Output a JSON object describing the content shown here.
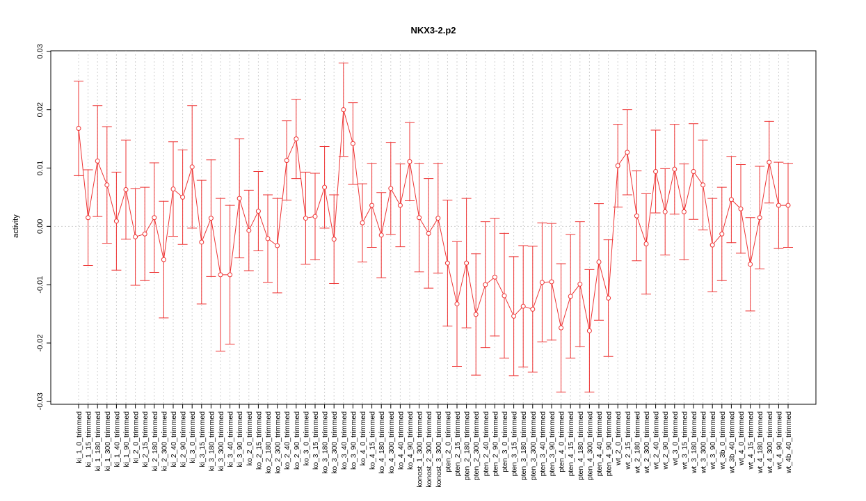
{
  "chart_data": {
    "type": "errorbar-line",
    "title": "NKX3-2.p2",
    "y_label": "activity",
    "categories": [
      "ki_1_0_trimmed",
      "ki_1_15_trimmed",
      "ki_1_180_trimmed",
      "ki_1_300_trimmed",
      "ki_1_40_trimmed",
      "ki_1_90_trimmed",
      "ki_2_0_trimmed",
      "ki_2_15_trimmed",
      "ki_2_180_trimmed",
      "ki_2_300_trimmed",
      "ki_2_40_trimmed",
      "ki_2_90_trimmed",
      "ki_3_0_trimmed",
      "ki_3_15_trimmed",
      "ki_3_180_trimmed",
      "ki_3_300_trimmed",
      "ki_3_40_trimmed",
      "ki_3_90_trimmed",
      "ko_2_0_trimmed",
      "ko_2_15_trimmed",
      "ko_2_180_trimmed",
      "ko_2_300_trimmed",
      "ko_2_40_trimmed",
      "ko_2_90_trimmed",
      "ko_3_0_trimmed",
      "ko_3_15_trimmed",
      "ko_3_180_trimmed",
      "ko_3_300_trimmed",
      "ko_3_40_trimmed",
      "ko_3_90_trimmed",
      "ko_4_0_trimmed",
      "ko_4_15_trimmed",
      "ko_4_180_trimmed",
      "ko_4_300_trimmed",
      "ko_4_40_trimmed",
      "ko_4_90_trimmed",
      "konost_1_300_trimmed",
      "konost_2_300_trimmed",
      "konost_3_300_trimmed",
      "pten_2_0_trimmed",
      "pten_2_15_trimmed",
      "pten_2_180_trimmed",
      "pten_2_300_trimmed",
      "pten_2_40_trimmed",
      "pten_2_90_trimmed",
      "pten_3_0_trimmed",
      "pten_3_15_trimmed",
      "pten_3_180_trimmed",
      "pten_3_300_trimmed",
      "pten_3_40_trimmed",
      "pten_3_90_trimmed",
      "pten_4_0_trimmed",
      "pten_4_15_trimmed",
      "pten_4_180_trimmed",
      "pten_4_300_trimmed",
      "pten_4_40_trimmed",
      "pten_4_90_trimmed",
      "wt_2_0_trimmed",
      "wt_2_15_trimmed",
      "wt_2_180_trimmed",
      "wt_2_300_trimmed",
      "wt_2_40_trimmed",
      "wt_2_90_trimmed",
      "wt_3_0_trimmed",
      "wt_3_15_trimmed",
      "wt_3_180_trimmed",
      "wt_3_300_trimmed",
      "wt_3_90_trimmed",
      "wt_3b_0_trimmed",
      "wt_3b_40_trimmed",
      "wt_4_0_trimmed",
      "wt_4_15_trimmed",
      "wt_4_180_trimmed",
      "wt_4_300_trimmed",
      "wt_4_90_trimmed",
      "wt_4b_40_trimmed"
    ],
    "values": [
      0.0168,
      0.0015,
      0.0112,
      0.0071,
      0.0009,
      0.0063,
      -0.0018,
      -0.0013,
      0.0015,
      -0.0057,
      0.0064,
      0.005,
      0.0102,
      -0.0027,
      0.0014,
      -0.0083,
      -0.0083,
      0.0048,
      -0.0007,
      0.0026,
      -0.0021,
      -0.0033,
      0.0113,
      0.015,
      0.0014,
      0.0017,
      0.0067,
      -0.0022,
      0.02,
      0.0142,
      0.0006,
      0.0036,
      -0.0015,
      0.0065,
      0.0036,
      0.0111,
      0.0015,
      -0.0012,
      0.0014,
      -0.0063,
      -0.0133,
      -0.0063,
      -0.0151,
      -0.01,
      -0.0087,
      -0.0119,
      -0.0154,
      -0.0137,
      -0.0142,
      -0.0096,
      -0.0095,
      -0.0174,
      -0.012,
      -0.0099,
      -0.0179,
      -0.0061,
      -0.0123,
      0.0104,
      0.0127,
      0.0018,
      -0.003,
      0.0094,
      0.0025,
      0.0098,
      0.0025,
      0.0094,
      0.0071,
      -0.0032,
      -0.0013,
      0.0046,
      0.003,
      -0.0065,
      0.0015,
      0.011,
      0.0036,
      0.0036
    ],
    "errors": [
      0.0081,
      0.0082,
      0.0095,
      0.01,
      0.0084,
      0.0085,
      0.0083,
      0.008,
      0.0094,
      0.01,
      0.0081,
      0.0081,
      0.0105,
      0.0106,
      0.01,
      0.0131,
      0.0119,
      0.0102,
      0.0069,
      0.0068,
      0.0075,
      0.0081,
      0.0068,
      0.0068,
      0.0079,
      0.0074,
      0.007,
      0.0076,
      0.008,
      0.007,
      0.0067,
      0.0072,
      0.0073,
      0.0079,
      0.0071,
      0.0067,
      0.0093,
      0.0094,
      0.0094,
      0.0108,
      0.0107,
      0.0111,
      0.0104,
      0.0108,
      0.0101,
      0.0107,
      0.0102,
      0.0104,
      0.0108,
      0.0102,
      0.01,
      0.011,
      0.0106,
      0.0107,
      0.0105,
      0.01,
      0.01,
      0.0071,
      0.0073,
      0.0077,
      0.0086,
      0.0071,
      0.0074,
      0.0077,
      0.0082,
      0.0082,
      0.0077,
      0.008,
      0.008,
      0.0074,
      0.0076,
      0.008,
      0.0088,
      0.007,
      0.0074,
      0.0072
    ],
    "color": "#ee3333",
    "ylim": [
      -0.0305,
      0.0301
    ],
    "yticks": [
      -0.03,
      -0.02,
      -0.01,
      {
        "value": 0,
        "label": "0.00"
      },
      0.01,
      0.02,
      0.03
    ],
    "reference_line": 0,
    "grid": "x"
  }
}
